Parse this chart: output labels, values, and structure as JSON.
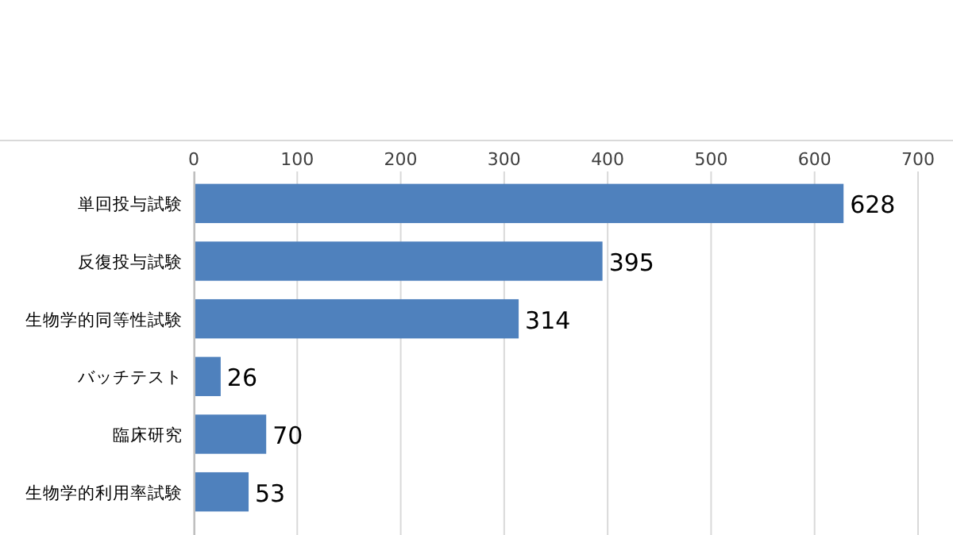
{
  "chart_data": {
    "type": "bar",
    "orientation": "horizontal",
    "categories": [
      "単回投与試験",
      "反復投与試験",
      "生物学的同等性試験",
      "バッチテスト",
      "臨床研究",
      "生物学的利用率試験"
    ],
    "values": [
      628,
      395,
      314,
      26,
      70,
      53
    ],
    "color": "#4f81bd",
    "xlim": [
      0,
      700
    ],
    "xticks": [
      0,
      100,
      200,
      300,
      400,
      500,
      600,
      700
    ],
    "grid": "x",
    "data_labels": true
  }
}
